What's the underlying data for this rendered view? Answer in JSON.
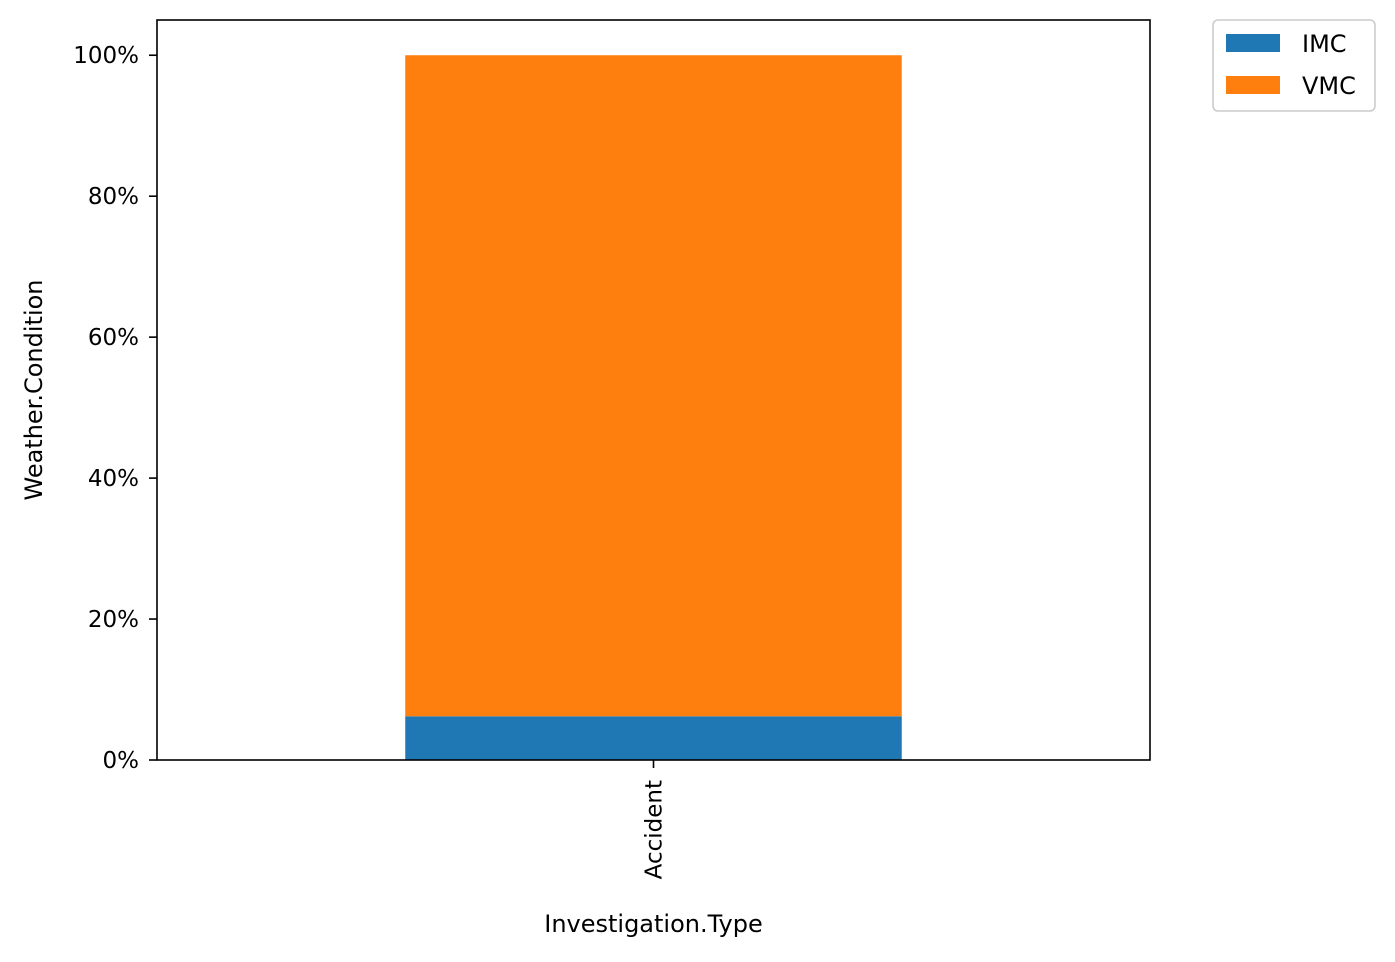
{
  "chart_data": {
    "type": "bar",
    "stacked": true,
    "normalized": true,
    "title": "",
    "xlabel": "Investigation.Type",
    "ylabel": "Weather.Condition",
    "categories": [
      "Accident"
    ],
    "series": [
      {
        "name": "IMC",
        "values": [
          6.2
        ],
        "color": "#1f77b4"
      },
      {
        "name": "VMC",
        "values": [
          93.8
        ],
        "color": "#ff7f0e"
      }
    ],
    "ylim": [
      0,
      105
    ],
    "yticks": [
      0,
      20,
      40,
      60,
      80,
      100
    ],
    "ytick_labels": [
      "0%",
      "20%",
      "40%",
      "60%",
      "80%",
      "100%"
    ],
    "grid": false,
    "legend_position": "outside-top-right"
  }
}
